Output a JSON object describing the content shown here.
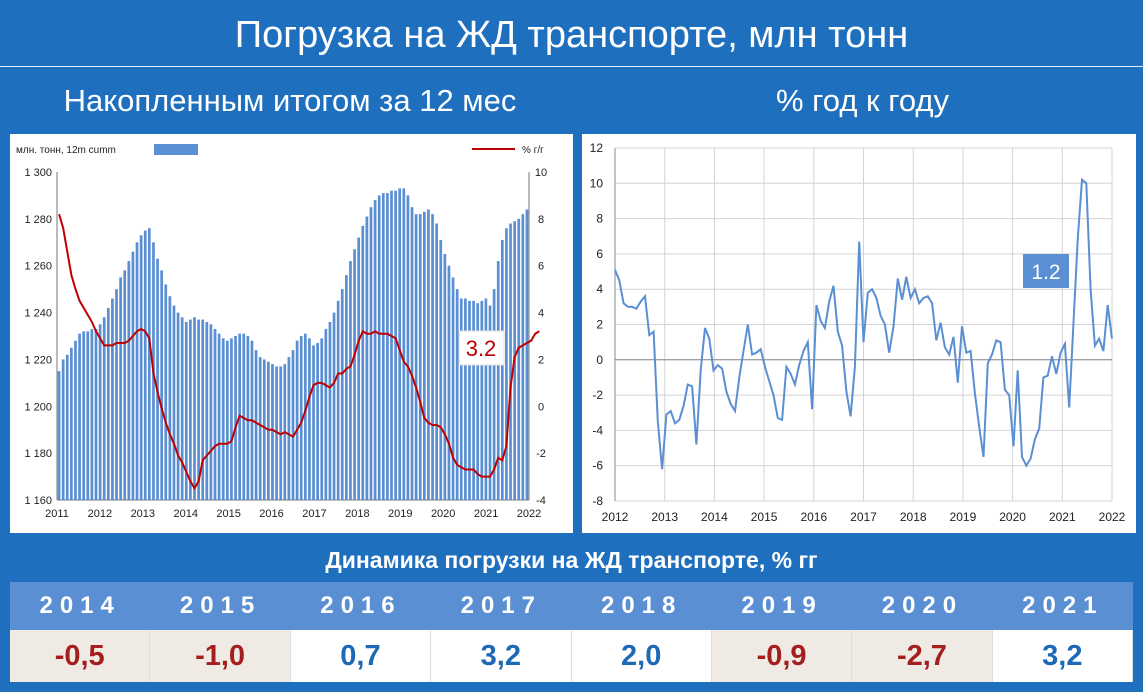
{
  "header": {
    "title": "Погрузка на ЖД транспорте, млн тонн"
  },
  "subtitles": {
    "left": "Накопленным итогом за 12 мес",
    "right": "% год к году"
  },
  "colors": {
    "bar": "#5b8fd3",
    "line_red": "#c00000",
    "line_blue": "#5b8fd3",
    "neg": "#a51e1e",
    "pos": "#1d69b5"
  },
  "chart_data": [
    {
      "type": "bar",
      "legend": {
        "bar_label": "млн. тонн, 12m cumm",
        "line_label": "% г/г"
      },
      "x_ticks": [
        "2011",
        "2012",
        "2013",
        "2014",
        "2015",
        "2016",
        "2017",
        "2018",
        "2019",
        "2020",
        "2021",
        "2022"
      ],
      "y_left": {
        "min": 1160,
        "max": 1300,
        "ticks": [
          "1 160",
          "1 180",
          "1 200",
          "1 220",
          "1 240",
          "1 260",
          "1 280",
          "1 300"
        ]
      },
      "y_right": {
        "min": -4,
        "max": 10,
        "ticks": [
          "-4",
          "-2",
          "0",
          "2",
          "4",
          "6",
          "8",
          "10"
        ]
      },
      "annotation": "3.2",
      "bars": [
        1215,
        1220,
        1222,
        1225,
        1228,
        1231,
        1232,
        1232,
        1233,
        1233,
        1235,
        1238,
        1242,
        1246,
        1250,
        1255,
        1258,
        1262,
        1266,
        1270,
        1273,
        1275,
        1276,
        1270,
        1263,
        1258,
        1252,
        1247,
        1243,
        1240,
        1238,
        1236,
        1237,
        1238,
        1237,
        1237,
        1236,
        1235,
        1233,
        1231,
        1229,
        1228,
        1229,
        1230,
        1231,
        1231,
        1230,
        1228,
        1224,
        1221,
        1220,
        1219,
        1218,
        1217,
        1217,
        1218,
        1221,
        1224,
        1228,
        1230,
        1231,
        1229,
        1226,
        1227,
        1229,
        1233,
        1236,
        1240,
        1245,
        1250,
        1256,
        1262,
        1267,
        1272,
        1277,
        1281,
        1285,
        1288,
        1290,
        1291,
        1291,
        1292,
        1292,
        1293,
        1293,
        1290,
        1285,
        1282,
        1282,
        1283,
        1284,
        1282,
        1278,
        1271,
        1265,
        1260,
        1255,
        1250,
        1246,
        1246,
        1245,
        1245,
        1244,
        1245,
        1246,
        1243,
        1250,
        1262,
        1271,
        1276,
        1278,
        1279,
        1280,
        1282,
        1284
      ],
      "line": [
        8.2,
        7.6,
        6.6,
        5.6,
        5.0,
        4.5,
        4.2,
        3.9,
        3.6,
        3.2,
        2.9,
        2.6,
        2.6,
        2.6,
        2.7,
        2.7,
        2.7,
        2.8,
        3.0,
        3.2,
        3.3,
        3.2,
        2.9,
        1.4,
        0.6,
        -0.1,
        -0.7,
        -1.2,
        -1.6,
        -2.1,
        -2.4,
        -2.8,
        -3.2,
        -3.5,
        -3.2,
        -2.3,
        -2.1,
        -1.9,
        -1.7,
        -1.6,
        -1.6,
        -1.6,
        -1.5,
        -0.9,
        -0.4,
        -0.5,
        -0.6,
        -0.6,
        -0.7,
        -0.8,
        -0.9,
        -1.0,
        -1.0,
        -1.1,
        -1.2,
        -1.1,
        -1.2,
        -1.3,
        -1.0,
        -0.7,
        -0.2,
        0.4,
        0.9,
        1.0,
        1.0,
        0.9,
        0.8,
        1.0,
        1.4,
        1.4,
        1.6,
        1.7,
        2.2,
        2.8,
        3.2,
        3.1,
        3.1,
        3.2,
        3.1,
        3.1,
        3.1,
        3.0,
        2.9,
        2.4,
        1.9,
        1.7,
        1.3,
        0.8,
        0.2,
        -0.5,
        -0.7,
        -0.8,
        -0.8,
        -0.9,
        -1.2,
        -1.6,
        -2.2,
        -2.5,
        -2.6,
        -2.7,
        -2.7,
        -2.7,
        -2.9,
        -3.0,
        -3.0,
        -3.0,
        -2.7,
        -2.2,
        -2.3,
        -1.7,
        0.8,
        2.1,
        2.5,
        2.6,
        2.7,
        2.8,
        3.1,
        3.2
      ]
    },
    {
      "type": "line",
      "x_ticks": [
        "2012",
        "2013",
        "2014",
        "2015",
        "2016",
        "2017",
        "2018",
        "2019",
        "2020",
        "2021",
        "2022"
      ],
      "y": {
        "min": -8,
        "max": 12,
        "ticks": [
          "-8",
          "-6",
          "-4",
          "-2",
          "0",
          "2",
          "4",
          "6",
          "8",
          "10",
          "12"
        ]
      },
      "annotation": "1.2",
      "values": [
        5.1,
        4.5,
        3.2,
        3.0,
        3.0,
        2.9,
        3.3,
        3.6,
        1.4,
        1.6,
        -3.5,
        -6.2,
        -3.1,
        -2.9,
        -3.6,
        -3.4,
        -2.6,
        -1.4,
        -1.5,
        -4.8,
        -0.6,
        1.8,
        1.2,
        -0.6,
        -0.3,
        -0.5,
        -1.8,
        -2.5,
        -2.9,
        -1.0,
        0.5,
        2.0,
        0.3,
        0.4,
        0.6,
        -0.4,
        -1.2,
        -2.0,
        -3.3,
        -3.4,
        -0.4,
        -0.8,
        -1.4,
        -0.3,
        0.5,
        1.0,
        -2.8,
        3.1,
        2.2,
        1.8,
        3.3,
        4.2,
        1.6,
        0.8,
        -1.8,
        -3.2,
        -0.4,
        6.7,
        1.0,
        3.8,
        4.0,
        3.5,
        2.5,
        2.0,
        0.4,
        1.9,
        4.6,
        3.4,
        4.7,
        3.5,
        4.0,
        3.2,
        3.5,
        3.6,
        3.2,
        1.1,
        2.1,
        0.7,
        0.3,
        1.3,
        -1.3,
        1.9,
        0.4,
        0.5,
        -1.9,
        -3.8,
        -5.5,
        -0.2,
        0.3,
        1.1,
        1.0,
        -1.7,
        -2.0,
        -4.9,
        -0.6,
        -5.5,
        -6.0,
        -5.6,
        -4.5,
        -3.9,
        -1.0,
        -0.9,
        0.2,
        -0.8,
        0.4,
        0.9,
        -2.7,
        2.0,
        6.8,
        10.2,
        10.0,
        4.0,
        0.8,
        1.2,
        0.5,
        3.1,
        1.2
      ]
    }
  ],
  "table": {
    "title": "Динамика погрузки на ЖД транспорте, % гг",
    "years": [
      "2014",
      "2015",
      "2016",
      "2017",
      "2018",
      "2019",
      "2020",
      "2021"
    ],
    "values": [
      "-0,5",
      "-1,0",
      "0,7",
      "3,2",
      "2,0",
      "-0,9",
      "-2,7",
      "3,2"
    ],
    "negative": [
      true,
      true,
      false,
      false,
      false,
      true,
      true,
      false
    ]
  }
}
